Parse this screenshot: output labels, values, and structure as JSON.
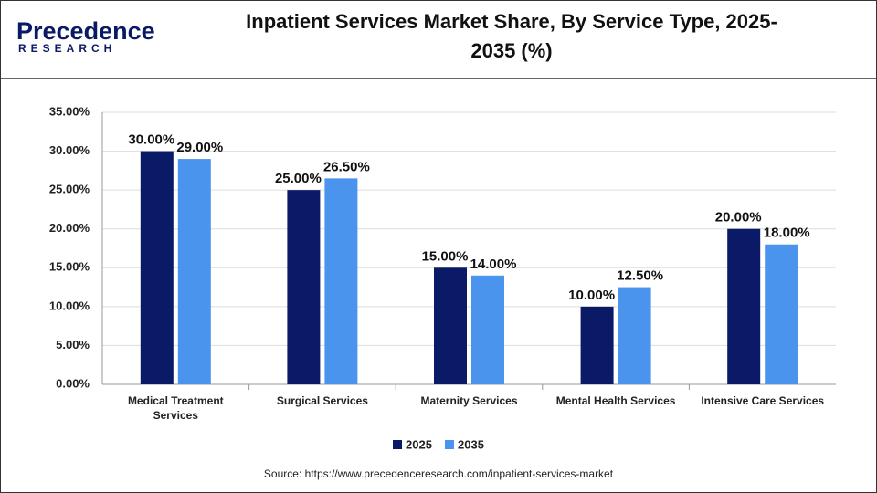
{
  "logo": {
    "name": "Precedence",
    "tagline": "RESEARCH"
  },
  "chart_data": {
    "type": "bar",
    "title": "Inpatient Services Market Share, By Service Type, 2025-2035 (%)",
    "categories": [
      "Medical Treatment Services",
      "Surgical Services",
      "Maternity Services",
      "Mental Health Services",
      "Intensive Care Services"
    ],
    "series": [
      {
        "name": "2025",
        "color": "#0b1a66",
        "values": [
          30,
          25,
          15,
          10,
          20
        ],
        "value_labels": [
          "30.00%",
          "25.00%",
          "15.00%",
          "10.00%",
          "20.00%"
        ]
      },
      {
        "name": "2035",
        "color": "#4a94ee",
        "values": [
          29,
          26.5,
          14,
          12.5,
          18
        ],
        "value_labels": [
          "29.00%",
          "26.50%",
          "14.00%",
          "12.50%",
          "18.00%"
        ]
      }
    ],
    "ylim": [
      0,
      35
    ],
    "yticks": [
      {
        "value": 0,
        "label": "0.00%"
      },
      {
        "value": 5,
        "label": "5.00%"
      },
      {
        "value": 10,
        "label": "10.00%"
      },
      {
        "value": 15,
        "label": "15.00%"
      },
      {
        "value": 20,
        "label": "20.00%"
      },
      {
        "value": 25,
        "label": "25.00%"
      },
      {
        "value": 30,
        "label": "30.00%"
      },
      {
        "value": 35,
        "label": "35.00%"
      }
    ],
    "grid": true,
    "legend": "bottom",
    "source": "Source: https://www.precedenceresearch.com/inpatient-services-market"
  }
}
